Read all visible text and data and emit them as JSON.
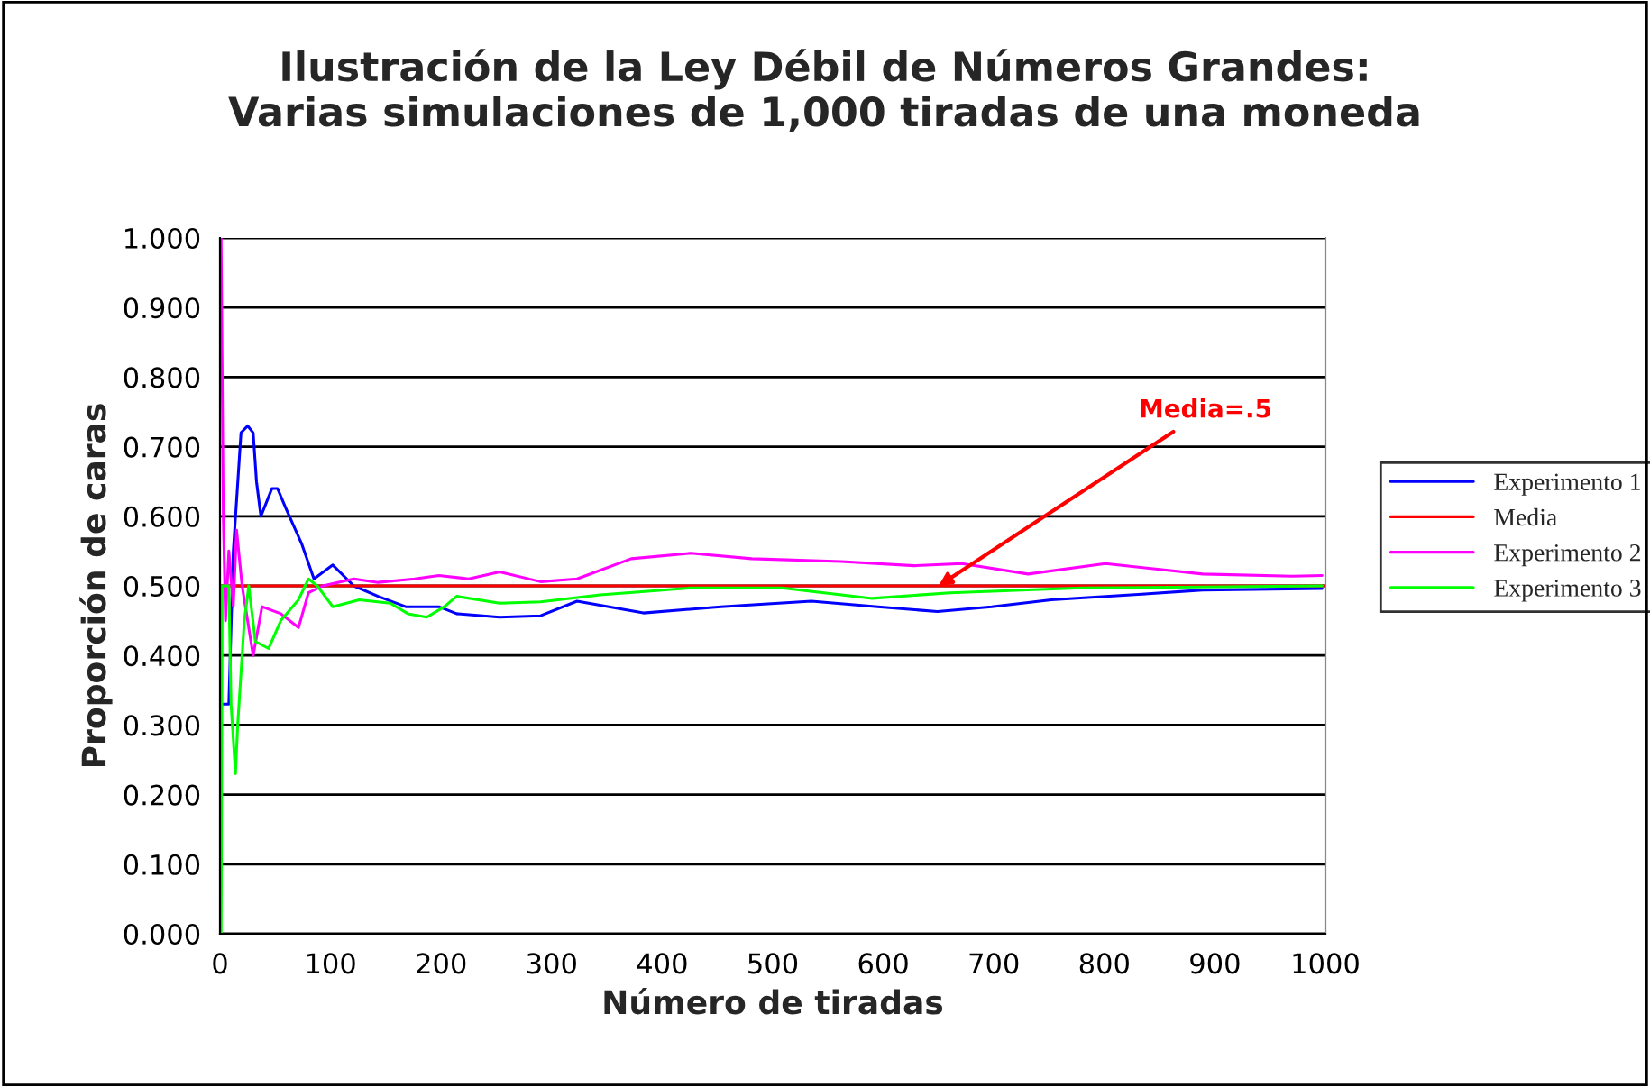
{
  "chart_data": {
    "type": "line",
    "title": "Ilustración de la Ley Débil de Números Grandes:\nVarias simulaciones de 1,000 tiradas de una moneda",
    "xlabel": "Número de tiradas",
    "ylabel": "Proporción de caras",
    "xlim": [
      0,
      1000
    ],
    "xticks": [
      0,
      100,
      200,
      300,
      400,
      500,
      600,
      700,
      800,
      900,
      1000
    ],
    "ylim": [
      0,
      1
    ],
    "yticks": [
      {
        "value": 0,
        "label": "0.000"
      },
      {
        "value": 0.1,
        "label": "0.100"
      },
      {
        "value": 0.2,
        "label": "0.200"
      },
      {
        "value": 0.3,
        "label": "0.300"
      },
      {
        "value": 0.4,
        "label": "0.400"
      },
      {
        "value": 0.5,
        "label": "0.500"
      },
      {
        "value": 0.6,
        "label": "0.600"
      },
      {
        "value": 0.7,
        "label": "0.700"
      },
      {
        "value": 0.8,
        "label": "0.800"
      },
      {
        "value": 0.9,
        "label": "0.900"
      },
      {
        "value": 1,
        "label": "1.000"
      }
    ],
    "grid": "y",
    "legend": "right",
    "marker": "none",
    "line_style": "solid",
    "series": [
      {
        "name": "Experimento 1",
        "color": "#0000ff",
        "x": [
          3,
          8,
          12,
          19,
          25,
          30,
          33,
          37,
          47,
          52,
          60,
          74,
          85,
          102,
          121,
          143,
          168,
          198,
          214,
          253,
          290,
          323,
          383,
          453,
          535,
          595,
          649,
          698,
          752,
          834,
          889,
          997
        ],
        "values": [
          0.33,
          0.33,
          0.55,
          0.72,
          0.73,
          0.72,
          0.65,
          0.6,
          0.64,
          0.64,
          0.61,
          0.56,
          0.51,
          0.53,
          0.5,
          0.485,
          0.47,
          0.47,
          0.46,
          0.455,
          0.457,
          0.478,
          0.461,
          0.47,
          0.478,
          0.47,
          0.463,
          0.47,
          0.48,
          0.488,
          0.494,
          0.496
        ]
      },
      {
        "name": "Media",
        "color": "#ff0000",
        "x": [
          1,
          1000
        ],
        "values": [
          0.5,
          0.5
        ]
      },
      {
        "name": "Experimento 2",
        "color": "#ff00ff",
        "x": [
          1,
          3,
          5,
          8,
          12,
          15,
          20,
          30,
          38,
          55,
          71,
          80,
          93,
          121,
          143,
          176,
          198,
          225,
          253,
          290,
          323,
          372,
          426,
          481,
          562,
          628,
          671,
          731,
          801,
          889,
          970,
          997
        ],
        "values": [
          1.0,
          0.6,
          0.45,
          0.55,
          0.47,
          0.58,
          0.5,
          0.4,
          0.47,
          0.46,
          0.44,
          0.49,
          0.5,
          0.51,
          0.505,
          0.51,
          0.515,
          0.51,
          0.52,
          0.506,
          0.51,
          0.539,
          0.547,
          0.539,
          0.535,
          0.529,
          0.532,
          0.517,
          0.532,
          0.517,
          0.514,
          0.515
        ]
      },
      {
        "name": "Experimento 3",
        "color": "#00ff00",
        "x": [
          1,
          2,
          8,
          10,
          14,
          16,
          22,
          26,
          32,
          44,
          55,
          71,
          80,
          88,
          102,
          126,
          154,
          170,
          187,
          203,
          214,
          253,
          290,
          344,
          426,
          508,
          590,
          660,
          780,
          997
        ],
        "values": [
          0.0,
          0.5,
          0.5,
          0.33,
          0.23,
          0.3,
          0.45,
          0.5,
          0.42,
          0.41,
          0.45,
          0.48,
          0.51,
          0.5,
          0.47,
          0.48,
          0.475,
          0.46,
          0.455,
          0.47,
          0.485,
          0.475,
          0.477,
          0.487,
          0.497,
          0.497,
          0.482,
          0.49,
          0.497,
          0.5
        ]
      }
    ],
    "annotations": [
      {
        "text": "Media=.5",
        "x": 650,
        "y": 0.5
      }
    ]
  }
}
